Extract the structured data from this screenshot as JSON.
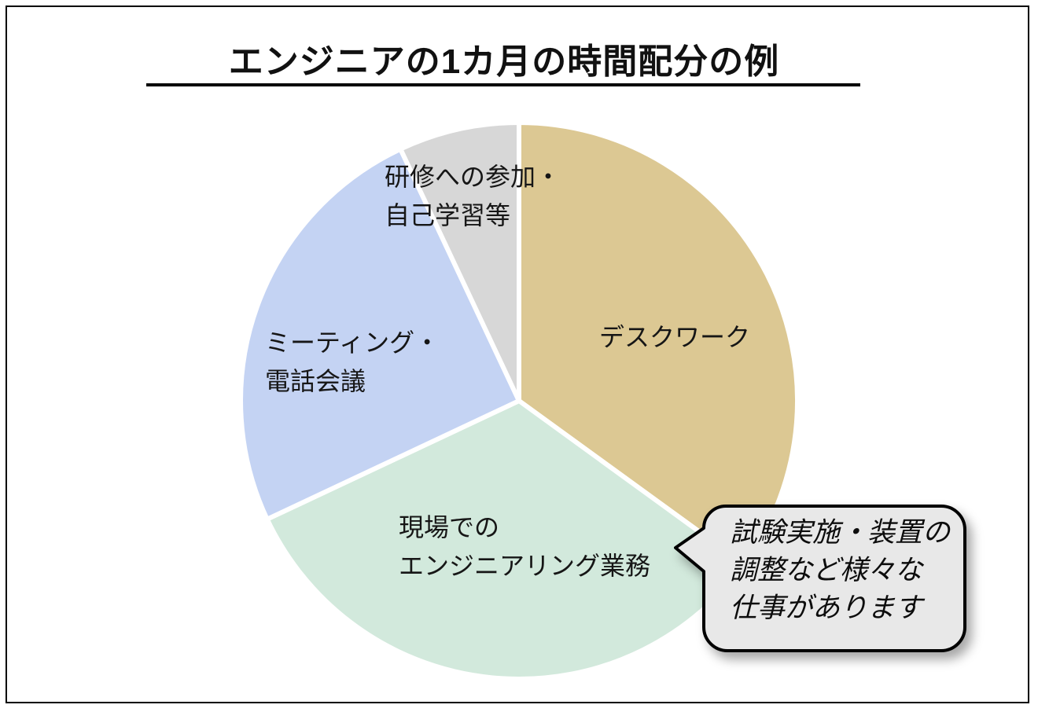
{
  "header": {
    "title": "エンジニアの1カ月の時間配分の例"
  },
  "chart_data": {
    "type": "pie",
    "title": "エンジニアの1カ月の時間配分の例",
    "direction": "clockwise",
    "start_angle_deg": 0,
    "values_unit": "percent (estimated from arc angles; no numeric labels shown)",
    "legend_position": "labels drawn on slices",
    "gap_color": "#ffffff",
    "segments": [
      {
        "label": "デスクワーク",
        "label_lines": [
          "デスクワーク"
        ],
        "value": 35,
        "color": "#DCC893"
      },
      {
        "label": "現場でのエンジニアリング業務",
        "label_lines": [
          "現場での",
          "エンジニアリング業務"
        ],
        "value": 33,
        "color": "#D2E9DC"
      },
      {
        "label": "ミーティング・電話会議",
        "label_lines": [
          "ミーティング・",
          "電話会議"
        ],
        "value": 25,
        "color": "#C4D3F3"
      },
      {
        "label": "研修への参加・自己学習等",
        "label_lines": [
          "研修への参加・",
          "自己学習等"
        ],
        "value": 7,
        "color": "#D7D7D7"
      }
    ],
    "callout": {
      "target_segment": "現場でのエンジニアリング業務",
      "text": "試験実施・装置の調整など様々な仕事があります",
      "lines": [
        "試験実施・装置の",
        "調整など様々な",
        "仕事があります"
      ],
      "fill": "#E8E8E8",
      "border_color": "#000000"
    }
  }
}
